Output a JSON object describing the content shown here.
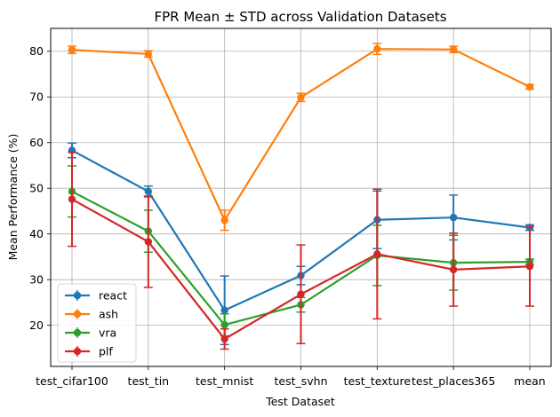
{
  "chart_data": {
    "type": "line",
    "title": "FPR Mean ± STD across Validation Datasets",
    "xlabel": "Test Dataset",
    "ylabel": "Mean Performance (%)",
    "categories": [
      "test_cifar100",
      "test_tin",
      "test_mnist",
      "test_svhn",
      "test_texture",
      "test_places365",
      "mean"
    ],
    "ylim": [
      11,
      85
    ],
    "yticks": [
      20,
      30,
      40,
      50,
      60,
      70,
      80
    ],
    "grid": true,
    "legend_position": "lower-left",
    "series": [
      {
        "name": "react",
        "color": "#1f77b4",
        "values": [
          58.3,
          49.3,
          23.3,
          30.9,
          43.1,
          43.6,
          41.4
        ],
        "errors": [
          1.6,
          1.2,
          7.5,
          2.0,
          6.3,
          4.9,
          0.6
        ]
      },
      {
        "name": "ash",
        "color": "#ff7f0e",
        "values": [
          80.3,
          79.4,
          43.0,
          69.9,
          80.5,
          80.4,
          72.2
        ],
        "errors": [
          0.8,
          0.7,
          2.2,
          0.9,
          1.2,
          0.7,
          0.5
        ]
      },
      {
        "name": "vra",
        "color": "#2ca02c",
        "values": [
          49.3,
          40.6,
          20.1,
          24.5,
          35.3,
          33.7,
          33.9
        ],
        "errors": [
          5.6,
          4.6,
          2.4,
          1.6,
          6.6,
          6.0,
          0.6
        ]
      },
      {
        "name": "plf",
        "color": "#d62728",
        "values": [
          47.6,
          38.3,
          17.0,
          26.8,
          35.6,
          32.2,
          32.9
        ],
        "errors": [
          10.3,
          10.0,
          2.2,
          10.8,
          14.2,
          8.0,
          8.7
        ]
      }
    ]
  }
}
